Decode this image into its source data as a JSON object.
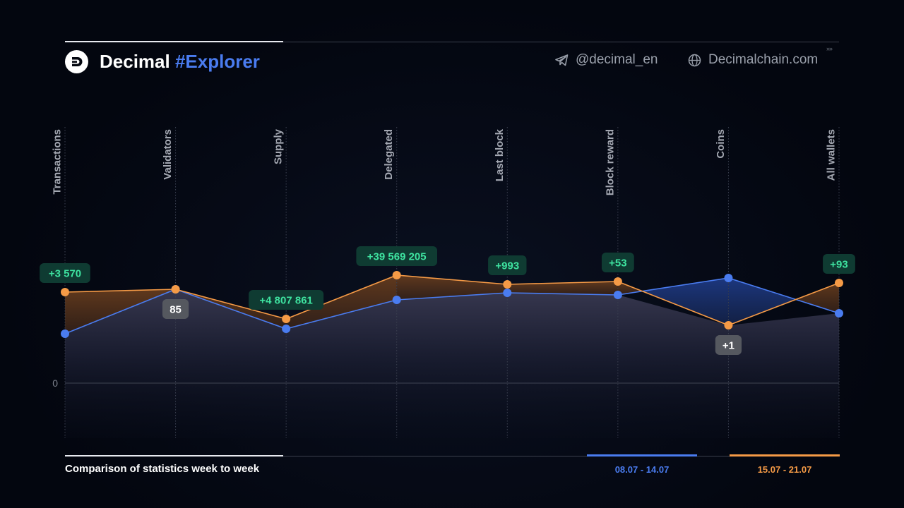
{
  "header": {
    "brand_name": "Decimal",
    "brand_highlight": "#Explorer",
    "telegram": "@decimal_en",
    "website": "Decimalchain.com"
  },
  "footer": {
    "title": "Comparison of statistics week to week"
  },
  "colors": {
    "background": "#03060f",
    "week1": "#4a7cf0",
    "week2": "#f59a46",
    "increase_badge_bg": "#0f3b32",
    "increase_badge_text": "#3ee3a0",
    "neutral_badge_bg": "#55585f",
    "neutral_badge_text": "#ffffff"
  },
  "chart_data": {
    "type": "line",
    "categories": [
      "Transactions",
      "Validators",
      "Supply",
      "Delegated",
      "Last block",
      "Block reward",
      "Coins",
      "All wallets"
    ],
    "baseline_label": "0",
    "series": [
      {
        "name": "08.07 - 14.07",
        "color": "#4a7cf0",
        "values": [
          70,
          133,
          77,
          118,
          128,
          125,
          149,
          99
        ]
      },
      {
        "name": "15.07 - 21.07",
        "color": "#f59a46",
        "values": [
          129,
          133,
          91,
          153,
          140,
          144,
          82,
          142
        ]
      }
    ],
    "ylim": [
      -78,
      200
    ],
    "grid": "vertical dotted",
    "annotations": [
      {
        "category": "Transactions",
        "text": "+3 570",
        "kind": "increase"
      },
      {
        "category": "Validators",
        "text": "85",
        "kind": "neutral"
      },
      {
        "category": "Supply",
        "text": "+4 807 861",
        "kind": "increase"
      },
      {
        "category": "Delegated",
        "text": "+39 569 205",
        "kind": "increase"
      },
      {
        "category": "Last block",
        "text": "+993",
        "kind": "increase"
      },
      {
        "category": "Block reward",
        "text": "+53",
        "kind": "increase"
      },
      {
        "category": "Coins",
        "text": "+1",
        "kind": "neutral"
      },
      {
        "category": "All wallets",
        "text": "+93",
        "kind": "increase"
      }
    ]
  }
}
